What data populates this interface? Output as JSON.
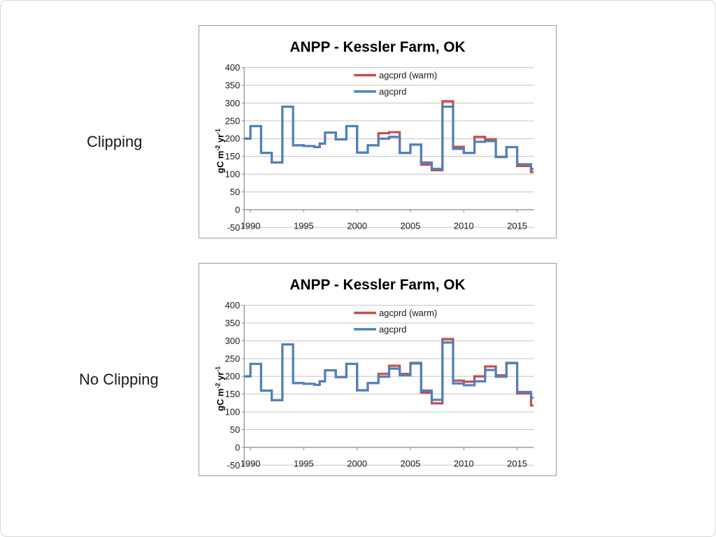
{
  "slide": {
    "background": "#ffffff",
    "border_color": "#d8d8d8"
  },
  "rows": [
    {
      "label": "Clipping"
    },
    {
      "label": "No Clipping"
    }
  ],
  "style": {
    "grid_color": "#c3c3c3",
    "axis_color": "#8c8c8c",
    "tick_text_color": "#1a1a1a",
    "title_color": "#000000",
    "chart_border_color": "#9b9b9b",
    "series_red": "#C0504D",
    "series_blue": "#4F81BD"
  },
  "chart_data": [
    {
      "type": "line",
      "step": true,
      "row_label": "Clipping",
      "title": "ANPP - Kessler Farm, OK",
      "ylabel": "gC m-2 yr-1",
      "ylabel_parts": [
        {
          "t": "gC m"
        },
        {
          "t": "-2",
          "sup": true
        },
        {
          "t": " yr"
        },
        {
          "t": "-1",
          "sup": true
        }
      ],
      "xlim": [
        1989.45,
        2016.6
      ],
      "ylim": [
        -50,
        400
      ],
      "x_ticks": [
        1990,
        1995,
        2000,
        2005,
        2010,
        2015
      ],
      "y_ticks": [
        400,
        350,
        300,
        250,
        200,
        150,
        100,
        50,
        0,
        -50
      ],
      "grid": true,
      "legend_position": "inside-top-center",
      "legend": [
        "agcprd (warm)",
        "agcprd"
      ],
      "series": [
        {
          "name": "agcprd (warm)",
          "color": "#C0504D",
          "steps": [
            [
              1989.45,
              200
            ],
            [
              1990,
              235
            ],
            [
              1991,
              160
            ],
            [
              1992,
              133
            ],
            [
              1993,
              290
            ],
            [
              1994,
              181
            ],
            [
              1995,
              179
            ],
            [
              1996,
              176
            ],
            [
              1996.5,
              186
            ],
            [
              1997,
              217
            ],
            [
              1998,
              198
            ],
            [
              1999,
              235
            ],
            [
              2000,
              161
            ],
            [
              2001,
              181
            ],
            [
              2002,
              215
            ],
            [
              2003,
              218
            ],
            [
              2004,
              160
            ],
            [
              2005,
              183
            ],
            [
              2006,
              127
            ],
            [
              2007,
              111
            ],
            [
              2008,
              305
            ],
            [
              2009,
              177
            ],
            [
              2010,
              160
            ],
            [
              2011,
              205
            ],
            [
              2012,
              198
            ],
            [
              2013,
              148
            ],
            [
              2014,
              176
            ],
            [
              2015,
              123
            ],
            [
              2016.3,
              106
            ]
          ]
        },
        {
          "name": "agcprd",
          "color": "#4F81BD",
          "steps": [
            [
              1989.45,
              200
            ],
            [
              1990,
              235
            ],
            [
              1991,
              160
            ],
            [
              1992,
              133
            ],
            [
              1993,
              290
            ],
            [
              1994,
              181
            ],
            [
              1995,
              179
            ],
            [
              1996,
              176
            ],
            [
              1996.5,
              186
            ],
            [
              1997,
              217
            ],
            [
              1998,
              198
            ],
            [
              1999,
              235
            ],
            [
              2000,
              161
            ],
            [
              2001,
              181
            ],
            [
              2002,
              200
            ],
            [
              2003,
              205
            ],
            [
              2004,
              160
            ],
            [
              2005,
              183
            ],
            [
              2006,
              133
            ],
            [
              2007,
              115
            ],
            [
              2008,
              290
            ],
            [
              2009,
              171
            ],
            [
              2010,
              160
            ],
            [
              2011,
              191
            ],
            [
              2012,
              193
            ],
            [
              2013,
              149
            ],
            [
              2014,
              176
            ],
            [
              2015,
              128
            ],
            [
              2016.3,
              115
            ]
          ]
        }
      ]
    },
    {
      "type": "line",
      "step": true,
      "row_label": "No Clipping",
      "title": "ANPP - Kessler Farm, OK",
      "ylabel": "gC m-2 yr-1",
      "ylabel_parts": [
        {
          "t": "gC m"
        },
        {
          "t": "-2",
          "sup": true
        },
        {
          "t": " yr"
        },
        {
          "t": "-1",
          "sup": true
        }
      ],
      "xlim": [
        1989.45,
        2016.6
      ],
      "ylim": [
        -50,
        400
      ],
      "x_ticks": [
        1990,
        1995,
        2000,
        2005,
        2010,
        2015
      ],
      "y_ticks": [
        400,
        350,
        300,
        250,
        200,
        150,
        100,
        50,
        0,
        -50
      ],
      "grid": true,
      "legend_position": "inside-top-center",
      "legend": [
        "agcprd (warm)",
        "agcprd"
      ],
      "series": [
        {
          "name": "agcprd (warm)",
          "color": "#C0504D",
          "steps": [
            [
              1989.45,
              200
            ],
            [
              1990,
              235
            ],
            [
              1991,
              160
            ],
            [
              1992,
              133
            ],
            [
              1993,
              290
            ],
            [
              1994,
              181
            ],
            [
              1995,
              179
            ],
            [
              1996,
              176
            ],
            [
              1996.5,
              186
            ],
            [
              1997,
              217
            ],
            [
              1998,
              198
            ],
            [
              1999,
              235
            ],
            [
              2000,
              161
            ],
            [
              2001,
              181
            ],
            [
              2002,
              207
            ],
            [
              2003,
              230
            ],
            [
              2004,
              207
            ],
            [
              2005,
              238
            ],
            [
              2006,
              154
            ],
            [
              2007,
              124
            ],
            [
              2008,
              305
            ],
            [
              2009,
              188
            ],
            [
              2010,
              185
            ],
            [
              2011,
              200
            ],
            [
              2012,
              228
            ],
            [
              2013,
              203
            ],
            [
              2014,
              238
            ],
            [
              2015,
              152
            ],
            [
              2016.3,
              118
            ]
          ]
        },
        {
          "name": "agcprd",
          "color": "#4F81BD",
          "steps": [
            [
              1989.45,
              200
            ],
            [
              1990,
              235
            ],
            [
              1991,
              160
            ],
            [
              1992,
              133
            ],
            [
              1993,
              290
            ],
            [
              1994,
              181
            ],
            [
              1995,
              179
            ],
            [
              1996,
              176
            ],
            [
              1996.5,
              186
            ],
            [
              1997,
              217
            ],
            [
              1998,
              198
            ],
            [
              1999,
              235
            ],
            [
              2000,
              161
            ],
            [
              2001,
              181
            ],
            [
              2002,
              199
            ],
            [
              2003,
              222
            ],
            [
              2004,
              203
            ],
            [
              2005,
              236
            ],
            [
              2006,
              160
            ],
            [
              2007,
              134
            ],
            [
              2008,
              295
            ],
            [
              2009,
              180
            ],
            [
              2010,
              175
            ],
            [
              2011,
              186
            ],
            [
              2012,
              218
            ],
            [
              2013,
              199
            ],
            [
              2014,
              237
            ],
            [
              2015,
              156
            ],
            [
              2016.3,
              140
            ]
          ]
        }
      ]
    }
  ]
}
